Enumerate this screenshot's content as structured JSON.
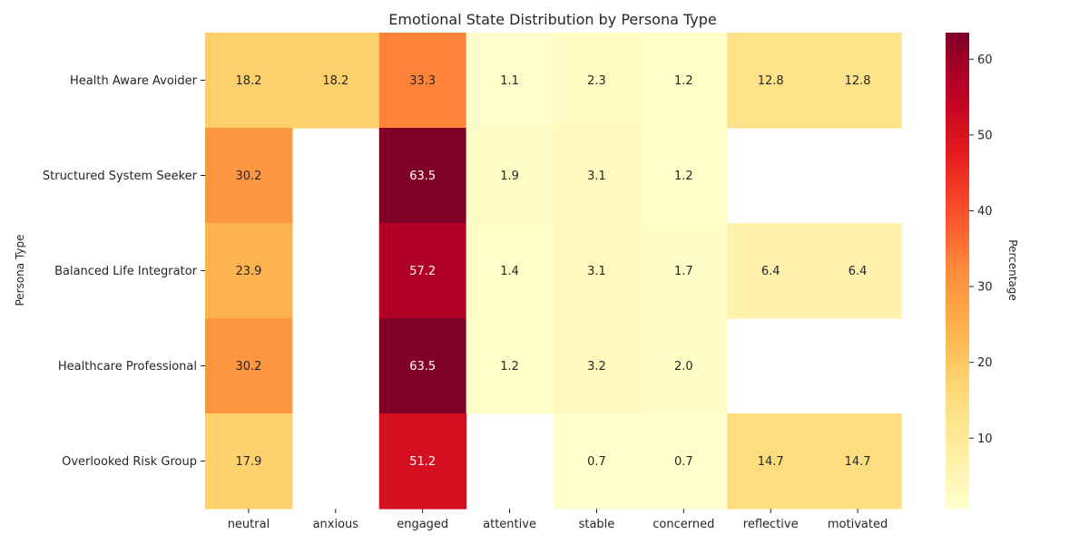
{
  "chart_data": {
    "type": "heatmap",
    "title": "Emotional State Distribution by Persona Type",
    "xlabel": "",
    "ylabel": "Persona Type",
    "colorbar_label": "Percentage",
    "colormap": "YlOrRd",
    "x_categories": [
      "neutral",
      "anxious",
      "engaged",
      "attentive",
      "stable",
      "concerned",
      "reflective",
      "motivated"
    ],
    "y_categories": [
      "Health Aware Avoider",
      "Structured System Seeker",
      "Balanced Life Integrator",
      "Healthcare Professional",
      "Overlooked Risk Group"
    ],
    "values": [
      [
        18.2,
        18.2,
        33.3,
        1.1,
        2.3,
        1.2,
        12.8,
        12.8
      ],
      [
        30.2,
        null,
        63.5,
        1.9,
        3.1,
        1.2,
        null,
        null
      ],
      [
        23.9,
        null,
        57.2,
        1.4,
        3.1,
        1.7,
        6.4,
        6.4
      ],
      [
        30.2,
        null,
        63.5,
        1.2,
        3.2,
        2.0,
        null,
        null
      ],
      [
        17.9,
        null,
        51.2,
        null,
        0.7,
        0.7,
        14.7,
        14.7
      ]
    ],
    "value_format": "0.0",
    "color_range": [
      0.7,
      63.5
    ],
    "colorbar_ticks": [
      10,
      20,
      30,
      40,
      50,
      60
    ]
  }
}
